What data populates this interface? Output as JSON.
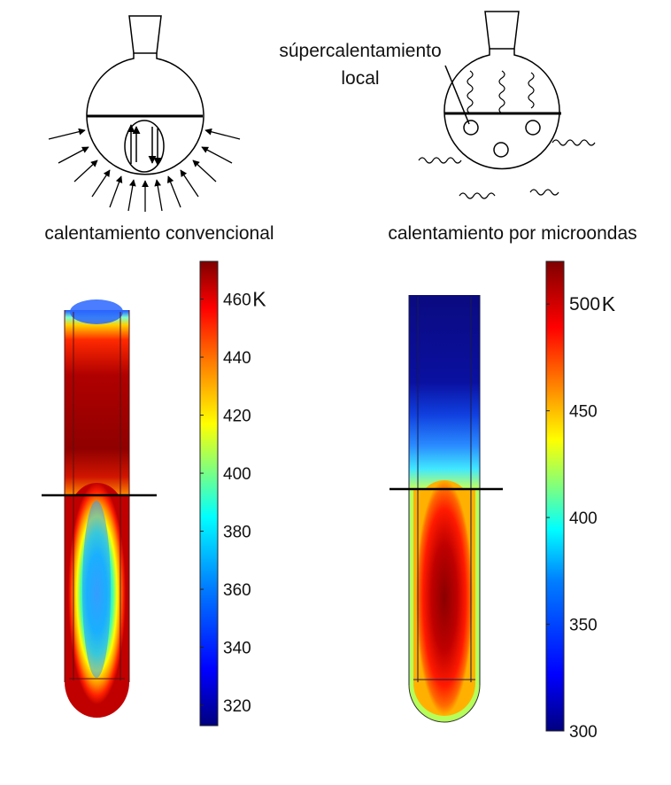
{
  "labels": {
    "local_superheating": [
      "súpercalentamiento",
      "local"
    ],
    "conventional": "calentamiento convencional",
    "microwave": "calentamiento por microondas"
  },
  "scales": {
    "conventional": {
      "ticks": [
        460,
        440,
        420,
        400,
        380,
        360,
        340,
        320
      ],
      "unit": "K",
      "range": [
        313,
        473
      ]
    },
    "microwave": {
      "ticks": [
        500,
        450,
        400,
        350,
        300
      ],
      "unit": "K",
      "range": [
        300,
        520
      ]
    }
  },
  "colors": {
    "line": "#000000",
    "jet": [
      "#00007f",
      "#0000ff",
      "#007fff",
      "#00ffff",
      "#7fff7f",
      "#ffff00",
      "#ff7f00",
      "#ff0000",
      "#7f0000"
    ]
  }
}
